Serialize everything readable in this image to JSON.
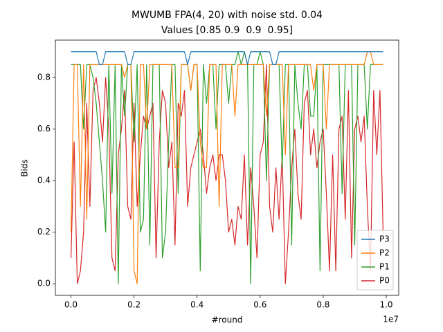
{
  "chart_data": {
    "type": "line",
    "title": "MWUMB FPA(4, 20) with noise std. 0.04",
    "subtitle": "Values [0.85 0.9  0.9  0.95]",
    "x_label": "#round",
    "y_label": "Bids",
    "x_offset_label": "1e7",
    "x": [
      0,
      100000,
      200000,
      300000,
      400000,
      500000,
      600000,
      700000,
      800000,
      900000,
      1000000,
      1100000,
      1200000,
      1300000,
      1400000,
      1500000,
      1600000,
      1700000,
      1800000,
      1900000,
      2000000,
      2100000,
      2200000,
      2300000,
      2400000,
      2500000,
      2600000,
      2700000,
      2800000,
      2900000,
      3000000,
      3100000,
      3200000,
      3300000,
      3400000,
      3500000,
      3600000,
      3700000,
      3800000,
      3900000,
      4000000,
      4100000,
      4200000,
      4300000,
      4400000,
      4500000,
      4600000,
      4700000,
      4800000,
      4900000,
      5000000,
      5100000,
      5200000,
      5300000,
      5400000,
      5500000,
      5600000,
      5700000,
      5800000,
      5900000,
      6000000,
      6100000,
      6200000,
      6300000,
      6400000,
      6500000,
      6600000,
      6700000,
      6800000,
      6900000,
      7000000,
      7100000,
      7200000,
      7300000,
      7400000,
      7500000,
      7600000,
      7700000,
      7800000,
      7900000,
      8000000,
      8100000,
      8200000,
      8300000,
      8400000,
      8500000,
      8600000,
      8700000,
      8800000,
      8900000,
      9000000,
      9100000,
      9200000,
      9300000,
      9400000,
      9500000,
      9600000,
      9700000,
      9800000,
      9900000
    ],
    "series": [
      {
        "name": "P3",
        "color": "#1f77b4",
        "values": [
          0.9,
          0.9,
          0.9,
          0.9,
          0.9,
          0.9,
          0.9,
          0.9,
          0.9,
          0.85,
          0.85,
          0.9,
          0.9,
          0.9,
          0.9,
          0.9,
          0.9,
          0.9,
          0.85,
          0.85,
          0.9,
          0.9,
          0.9,
          0.9,
          0.9,
          0.9,
          0.9,
          0.9,
          0.9,
          0.9,
          0.9,
          0.9,
          0.9,
          0.9,
          0.9,
          0.9,
          0.9,
          0.85,
          0.9,
          0.9,
          0.9,
          0.9,
          0.9,
          0.9,
          0.9,
          0.9,
          0.9,
          0.9,
          0.9,
          0.9,
          0.9,
          0.9,
          0.9,
          0.9,
          0.9,
          0.9,
          0.85,
          0.9,
          0.9,
          0.9,
          0.9,
          0.9,
          0.9,
          0.9,
          0.85,
          0.85,
          0.9,
          0.9,
          0.9,
          0.9,
          0.9,
          0.9,
          0.9,
          0.9,
          0.9,
          0.9,
          0.9,
          0.9,
          0.9,
          0.9,
          0.9,
          0.9,
          0.9,
          0.9,
          0.9,
          0.9,
          0.9,
          0.9,
          0.9,
          0.9,
          0.9,
          0.9,
          0.9,
          0.9,
          0.9,
          0.9,
          0.9,
          0.9,
          0.9,
          0.9
        ]
      },
      {
        "name": "P2",
        "color": "#ff7f0e",
        "values": [
          0.2,
          0.85,
          0.85,
          0.3,
          0.85,
          0.25,
          0.85,
          0.85,
          0.85,
          0.85,
          0.85,
          0.85,
          0.85,
          0.85,
          0.85,
          0.85,
          0.85,
          0.8,
          0.85,
          0.85,
          0.05,
          0.0,
          0.85,
          0.85,
          0.6,
          0.85,
          0.85,
          0.85,
          0.85,
          0.85,
          0.85,
          0.85,
          0.85,
          0.45,
          0.45,
          0.85,
          0.85,
          0.85,
          0.75,
          0.85,
          0.85,
          0.55,
          0.45,
          0.45,
          0.85,
          0.85,
          0.85,
          0.3,
          0.85,
          0.85,
          0.85,
          0.85,
          0.65,
          0.85,
          0.85,
          0.85,
          0.85,
          0.85,
          0.85,
          0.85,
          0.85,
          0.85,
          0.65,
          0.85,
          0.85,
          0.85,
          0.85,
          0.85,
          0.5,
          0.85,
          0.85,
          0.85,
          0.85,
          0.85,
          0.85,
          0.85,
          0.85,
          0.75,
          0.85,
          0.85,
          0.85,
          0.6,
          0.85,
          0.85,
          0.85,
          0.85,
          0.85,
          0.85,
          0.85,
          0.85,
          0.85,
          0.85,
          0.85,
          0.85,
          0.9,
          0.9,
          0.85,
          0.85,
          0.85,
          0.85
        ]
      },
      {
        "name": "P1",
        "color": "#2ca02c",
        "values": [
          0.85,
          0.85,
          0.85,
          0.85,
          0.6,
          0.85,
          0.85,
          0.8,
          0.7,
          0.55,
          0.4,
          0.2,
          0.85,
          0.35,
          0.85,
          0.0,
          0.85,
          0.65,
          0.85,
          0.85,
          0.55,
          0.85,
          0.2,
          0.25,
          0.85,
          0.15,
          0.85,
          0.85,
          0.85,
          0.1,
          0.2,
          0.55,
          0.85,
          0.85,
          0.35,
          0.85,
          0.85,
          0.85,
          0.75,
          0.85,
          0.85,
          0.05,
          0.85,
          0.7,
          0.85,
          0.85,
          0.6,
          0.85,
          0.85,
          0.85,
          0.7,
          0.85,
          0.85,
          0.9,
          0.85,
          0.9,
          0.85,
          0.0,
          0.85,
          0.85,
          0.9,
          0.85,
          0.4,
          0.85,
          0.85,
          0.85,
          0.85,
          0.45,
          0.85,
          0.85,
          0.15,
          0.85,
          0.7,
          0.6,
          0.85,
          0.85,
          0.65,
          0.65,
          0.85,
          0.05,
          0.85,
          0.85,
          0.85,
          0.85,
          0.85,
          0.85,
          0.35,
          0.85,
          0.85,
          0.85,
          0.15,
          0.85,
          0.85,
          0.85,
          0.6,
          0.85,
          0.85,
          0.85,
          0.85,
          0.85
        ]
      },
      {
        "name": "P0",
        "color": "#d62728",
        "values": [
          0.1,
          0.55,
          0.0,
          0.05,
          0.2,
          0.7,
          0.3,
          0.75,
          0.8,
          0.7,
          0.55,
          0.8,
          0.6,
          0.1,
          0.05,
          0.5,
          0.6,
          0.75,
          0.3,
          0.25,
          0.7,
          0.3,
          0.5,
          0.65,
          0.6,
          0.65,
          0.7,
          0.1,
          0.55,
          0.75,
          0.7,
          0.45,
          0.55,
          0.15,
          0.7,
          0.65,
          0.75,
          0.3,
          0.45,
          0.5,
          0.55,
          0.6,
          0.5,
          0.35,
          0.45,
          0.5,
          0.4,
          0.5,
          0.5,
          0.4,
          0.2,
          0.25,
          0.15,
          0.3,
          0.25,
          0.5,
          0.15,
          0.45,
          0.3,
          0.1,
          0.5,
          0.55,
          0.85,
          0.3,
          0.2,
          0.45,
          0.25,
          0.5,
          0.0,
          0.2,
          0.45,
          0.6,
          0.35,
          0.25,
          0.7,
          0.75,
          0.5,
          0.6,
          0.45,
          0.55,
          0.6,
          0.35,
          0.05,
          0.5,
          0.05,
          0.6,
          0.65,
          0.25,
          0.75,
          0.1,
          0.6,
          0.65,
          0.55,
          0.65,
          0.3,
          0.05,
          0.75,
          0.5,
          0.75,
          0.2
        ]
      }
    ],
    "xlim": [
      -495000,
      10395000
    ],
    "ylim": [
      -0.045,
      0.945
    ],
    "xticks": [
      {
        "value": 0,
        "label": "0.0"
      },
      {
        "value": 2000000,
        "label": "0.2"
      },
      {
        "value": 4000000,
        "label": "0.4"
      },
      {
        "value": 6000000,
        "label": "0.6"
      },
      {
        "value": 8000000,
        "label": "0.8"
      },
      {
        "value": 10000000,
        "label": "1.0"
      }
    ],
    "yticks": [
      {
        "value": 0,
        "label": "0.0"
      },
      0.2,
      0.4,
      0.6,
      0.8
    ],
    "grid": false,
    "legend_position": "lower right"
  }
}
